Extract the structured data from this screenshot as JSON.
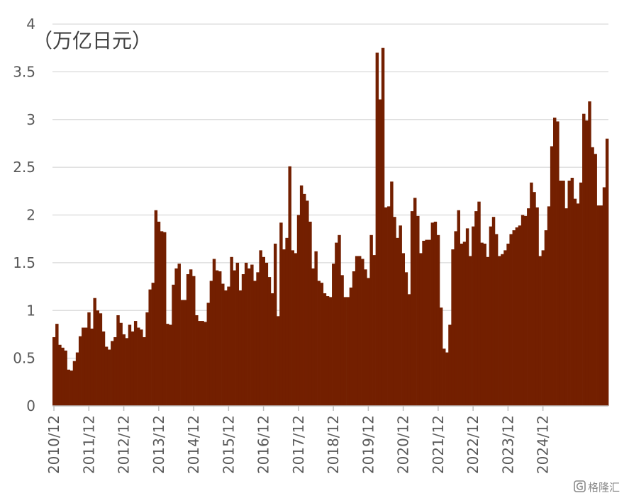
{
  "chart_data": {
    "type": "bar",
    "unit_label": "（万亿日元）",
    "ylim": [
      0,
      4
    ],
    "y_ticks": [
      "0",
      "0.5",
      "1",
      "1.5",
      "2",
      "2.5",
      "3",
      "3.5",
      "4"
    ],
    "grid": true,
    "color": "#731F00",
    "x_tick_labels": [
      "2010/12",
      "2011/12",
      "2012/12",
      "2013/12",
      "2014/12",
      "2015/12",
      "2016/12",
      "2017/12",
      "2018/12",
      "2019/12",
      "2020/12",
      "2021/12",
      "2022/12",
      "2023/12",
      "2024/12"
    ],
    "start": "2010/12",
    "end": "2024/12",
    "values": [
      0.72,
      0.86,
      0.64,
      0.61,
      0.58,
      0.38,
      0.37,
      0.47,
      0.56,
      0.73,
      0.82,
      0.82,
      0.98,
      0.81,
      1.13,
      1.0,
      0.97,
      0.78,
      0.62,
      0.59,
      0.68,
      0.72,
      0.95,
      0.87,
      0.75,
      0.71,
      0.85,
      0.78,
      0.89,
      0.82,
      0.8,
      0.72,
      0.98,
      1.22,
      1.29,
      2.05,
      1.93,
      1.83,
      1.82,
      0.86,
      0.85,
      1.27,
      1.44,
      1.49,
      1.11,
      1.11,
      1.38,
      1.43,
      1.36,
      0.95,
      0.89,
      0.89,
      0.88,
      1.08,
      1.31,
      1.54,
      1.42,
      1.41,
      1.28,
      1.21,
      1.25,
      1.56,
      1.42,
      1.5,
      1.21,
      1.38,
      1.5,
      1.44,
      1.48,
      1.31,
      1.4,
      1.63,
      1.56,
      1.5,
      1.35,
      1.18,
      1.7,
      0.94,
      1.92,
      1.64,
      1.76,
      2.51,
      1.63,
      1.6,
      2.0,
      2.31,
      2.22,
      2.15,
      1.93,
      1.44,
      1.62,
      1.31,
      1.29,
      1.18,
      1.15,
      1.14,
      1.49,
      1.71,
      1.79,
      1.37,
      1.14,
      1.14,
      1.24,
      1.41,
      1.57,
      1.57,
      1.54,
      1.43,
      1.34,
      1.79,
      1.58,
      3.7,
      3.21,
      3.75,
      2.08,
      2.09,
      2.35,
      1.98,
      1.76,
      1.89,
      1.6,
      1.4,
      1.17,
      2.04,
      2.18,
      1.99,
      1.6,
      1.73,
      1.74,
      1.74,
      1.92,
      1.93,
      1.79,
      1.03,
      0.6,
      0.56,
      0.85,
      1.64,
      1.83,
      2.05,
      1.7,
      1.72,
      1.86,
      1.57,
      1.88,
      2.04,
      2.14,
      1.71,
      1.7,
      1.56,
      1.88,
      1.98,
      1.8,
      1.57,
      1.59,
      1.63,
      1.7,
      1.8,
      1.84,
      1.87,
      1.89,
      2.0,
      1.99,
      2.07,
      2.34,
      2.24,
      2.08,
      1.57,
      1.63,
      1.84,
      2.09,
      2.72,
      3.02,
      2.98,
      2.36,
      2.36,
      2.07,
      2.36,
      2.39,
      2.17,
      2.12,
      2.34,
      3.06,
      2.99,
      3.19,
      2.71,
      2.64,
      2.1,
      2.1,
      2.29,
      2.8
    ]
  },
  "watermark": {
    "icon": "gelonghui-logo-icon",
    "text": "格隆汇"
  }
}
